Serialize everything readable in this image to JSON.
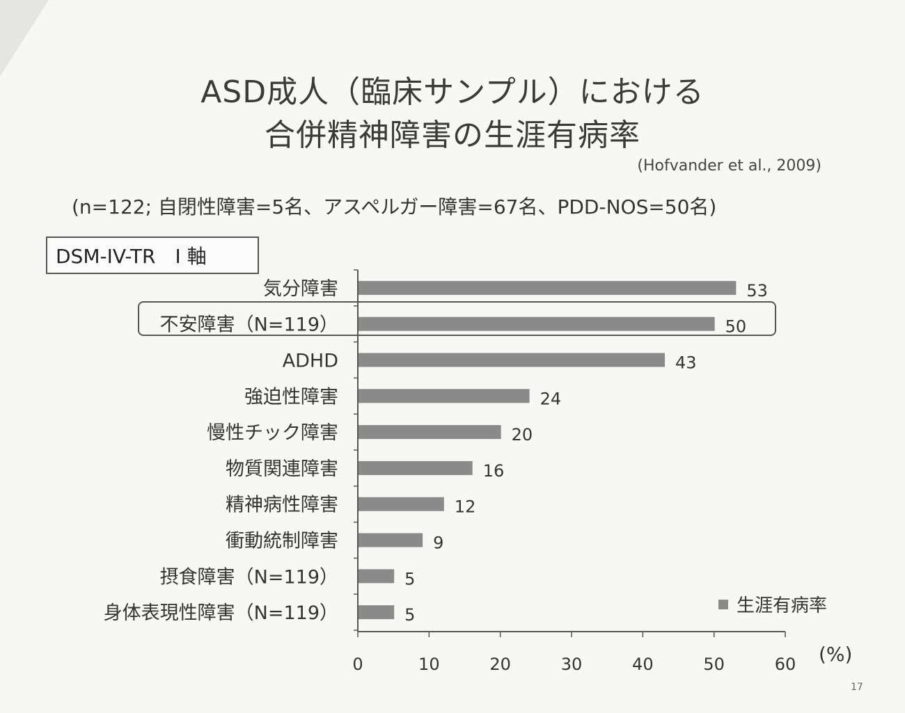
{
  "title_line1": "ASD成人（臨床サンプル）における",
  "title_line2": "合併精神障害の生涯有病率",
  "citation": "(Hofvander et al., 2009)",
  "sample_note": "(n=122; 自閉性障害=5名、アスペルガー障害=67名、PDD-NOS=50名)",
  "axis_box_label": "DSM-IV-TR　I 軸",
  "unit_label": "(%)",
  "page_number": "17",
  "colors": {
    "bar": "#8a8a8a",
    "axis": "#555555"
  },
  "chart_data": {
    "type": "bar",
    "orientation": "horizontal",
    "categories": [
      "気分障害",
      "不安障害（N=119）",
      "ADHD",
      "強迫性障害",
      "慢性チック障害",
      "物質関連障害",
      "精神病性障害",
      "衝動統制障害",
      "摂食障害（N=119）",
      "身体表現性障害（N=119）"
    ],
    "series": [
      {
        "name": "生涯有病率",
        "values": [
          53,
          50,
          43,
          24,
          20,
          16,
          12,
          9,
          5,
          5
        ]
      }
    ],
    "xlim": [
      0,
      60
    ],
    "xticks": [
      0,
      10,
      20,
      30,
      40,
      50,
      60
    ],
    "highlighted_category": "不安障害（N=119）",
    "legend_position": "bottom-right",
    "grid": false
  }
}
